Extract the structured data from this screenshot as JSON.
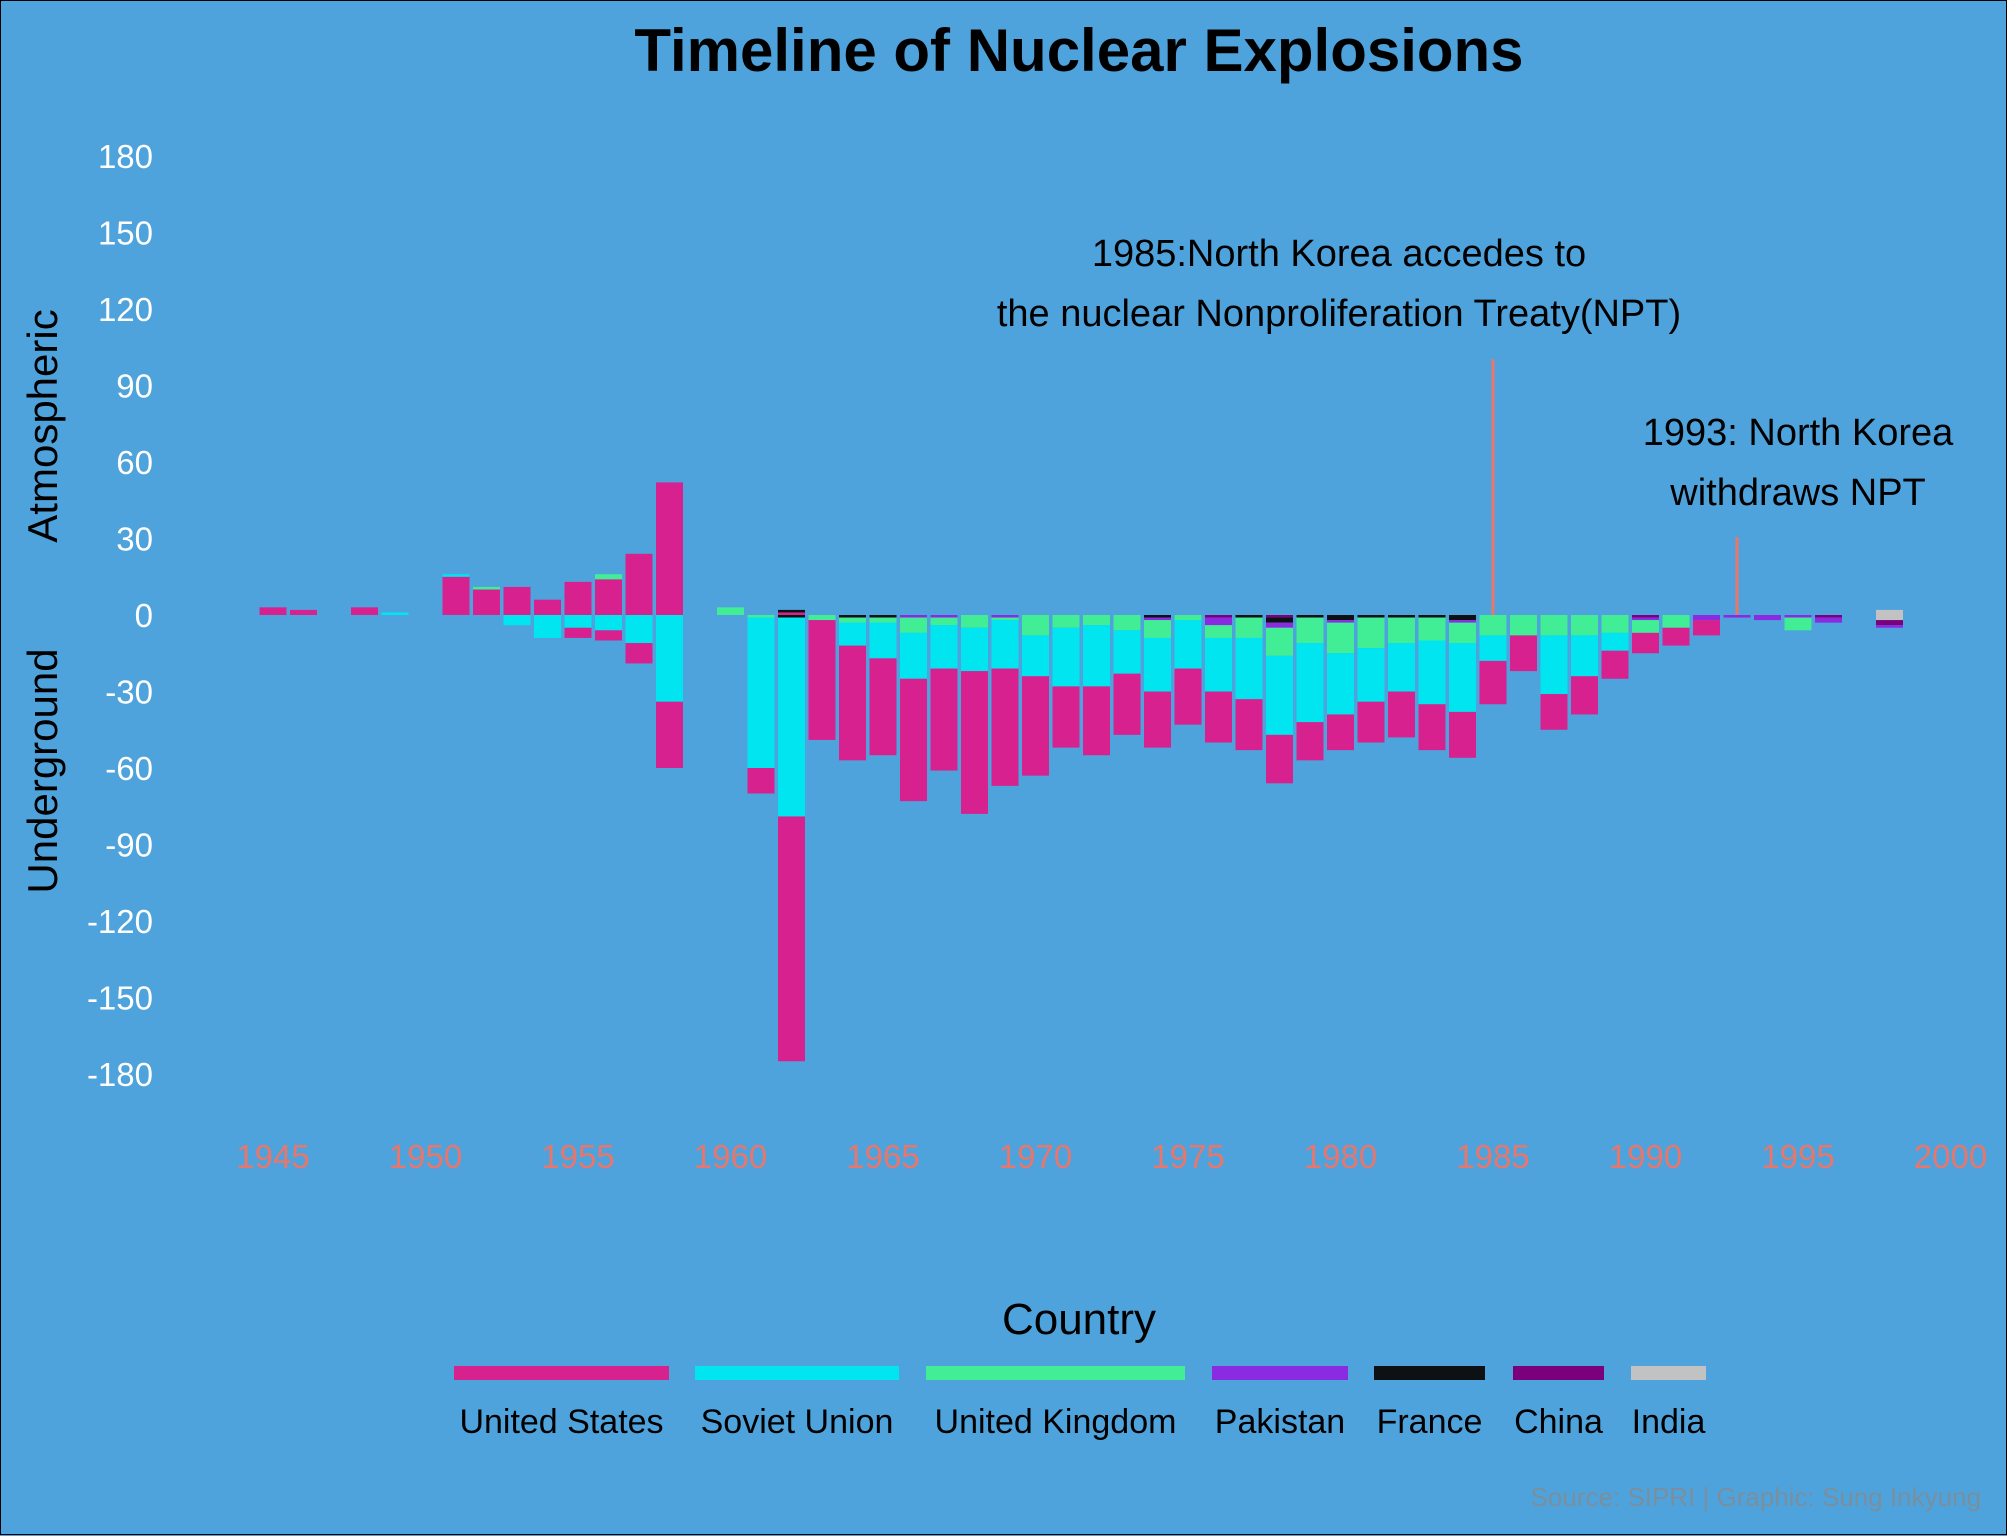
{
  "colors": {
    "background": "#4fa3dc",
    "x_tick_text": "#e8766c",
    "y_tick_text": "#ffffff",
    "annotation_line": "#e8766c",
    "source_text": "#7a8f9e"
  },
  "chart_data": {
    "type": "bar",
    "stacked": true,
    "diverging": true,
    "title": "Timeline of Nuclear Explosions",
    "ylabel_positive": "Atmospheric",
    "ylabel_negative": "Underground",
    "xlim": [
      1943,
      2000
    ],
    "ylim": [
      -180,
      180
    ],
    "x_ticks": [
      1945,
      1950,
      1955,
      1960,
      1965,
      1970,
      1975,
      1980,
      1985,
      1990,
      1995,
      2000
    ],
    "y_ticks": [
      180,
      150,
      120,
      90,
      60,
      30,
      0,
      -30,
      -60,
      -90,
      -120,
      -150,
      -180
    ],
    "legend_title": "Country",
    "legend_position": "bottom",
    "series": [
      {
        "name": "United States",
        "color": "#d6218f"
      },
      {
        "name": "Soviet Union",
        "color": "#00e5f0"
      },
      {
        "name": "United Kingdom",
        "color": "#41ee96"
      },
      {
        "name": "Pakistan",
        "color": "#8a2be2"
      },
      {
        "name": "France",
        "color": "#0d1114"
      },
      {
        "name": "China",
        "color": "#7b007b"
      },
      {
        "name": "India",
        "color": "#c2c2c2"
      }
    ],
    "atmospheric": {
      "United States": {
        "1945": 3,
        "1946": 2,
        "1948": 3,
        "1951": 15,
        "1952": 10,
        "1953": 11,
        "1954": 6,
        "1955": 13,
        "1956": 14,
        "1957": 24,
        "1958": 52,
        "1962": 1
      },
      "Soviet Union": {
        "1949": 1,
        "1951": 1,
        "1953": 0,
        "1956": 0,
        "1957": 0,
        "1958": 0,
        "1962": 0
      },
      "United Kingdom": {
        "1952": 1,
        "1953": 0,
        "1956": 2,
        "1957": 0,
        "1958": 0,
        "1960": 3
      },
      "France": {
        "1962": 1
      }
    },
    "underground": {
      "United States": {
        "1951": 0,
        "1955": 4,
        "1956": 4,
        "1957": 8,
        "1958": 26,
        "1961": 10,
        "1962": 96,
        "1963": 47,
        "1964": 45,
        "1965": 38,
        "1966": 48,
        "1967": 40,
        "1968": 56,
        "1969": 46,
        "1970": 39,
        "1971": 24,
        "1972": 27,
        "1973": 24,
        "1974": 22,
        "1975": 22,
        "1976": 20,
        "1977": 20,
        "1978": 19,
        "1979": 15,
        "1980": 14,
        "1981": 16,
        "1982": 18,
        "1983": 18,
        "1984": 18,
        "1985": 17,
        "1986": 14,
        "1987": 14,
        "1988": 15,
        "1989": 11,
        "1990": 8,
        "1991": 7,
        "1992": 6
      },
      "Soviet Union": {
        "1953": 4,
        "1954": 9,
        "1955": 5,
        "1956": 6,
        "1957": 11,
        "1958": 34,
        "1961": 59,
        "1962": 78,
        "1963": 0,
        "1964": 9,
        "1965": 14,
        "1966": 18,
        "1967": 17,
        "1968": 17,
        "1969": 19,
        "1970": 16,
        "1971": 23,
        "1972": 24,
        "1973": 17,
        "1974": 21,
        "1975": 19,
        "1976": 21,
        "1977": 24,
        "1978": 31,
        "1979": 31,
        "1980": 24,
        "1981": 21,
        "1982": 19,
        "1983": 25,
        "1984": 27,
        "1985": 10,
        "1986": 0,
        "1987": 23,
        "1988": 16,
        "1989": 7
      },
      "United Kingdom": {
        "1960": 0,
        "1961": 1,
        "1962": 0,
        "1963": 2,
        "1964": 2,
        "1965": 2,
        "1966": 6,
        "1967": 3,
        "1968": 5,
        "1969": 1,
        "1970": 8,
        "1971": 5,
        "1972": 4,
        "1973": 6,
        "1974": 7,
        "1975": 2,
        "1976": 5,
        "1977": 8,
        "1978": 11,
        "1979": 10,
        "1980": 12,
        "1981": 12,
        "1982": 10,
        "1983": 9,
        "1984": 8,
        "1985": 8,
        "1986": 8,
        "1987": 8,
        "1988": 8,
        "1989": 7,
        "1990": 5,
        "1991": 5,
        "1995": 5
      },
      "Pakistan": {
        "1966": 1,
        "1967": 1,
        "1969": 1,
        "1974": 1,
        "1976": 3,
        "1978": 2,
        "1980": 1,
        "1984": 1,
        "1990": 1,
        "1992": 2,
        "1993": 1,
        "1994": 2,
        "1995": 1,
        "1996": 2,
        "1998": 1
      },
      "France": {
        "1962": 1,
        "1964": 1,
        "1965": 1,
        "1974": 1,
        "1977": 1,
        "1978": 2,
        "1979": 1,
        "1980": 2,
        "1981": 1,
        "1982": 1,
        "1983": 1,
        "1984": 2
      },
      "China": {
        "1963": 0,
        "1976": 1,
        "1978": 1,
        "1982": 0,
        "1990": 1,
        "1996": 1,
        "1998": 2
      },
      "India": {
        "1998": 2
      }
    },
    "atmospheric_india": {
      "1998": 2
    },
    "annotations": [
      {
        "x": 1985,
        "lines": [
          "1985:North Korea accedes to",
          "the nuclear Nonproliferation Treaty(NPT)"
        ]
      },
      {
        "x": 1993,
        "lines": [
          "1993: North Korea",
          "withdraws NPT"
        ]
      }
    ],
    "source": "Source: SIPRI | Graphic: Sung Inkyung"
  }
}
